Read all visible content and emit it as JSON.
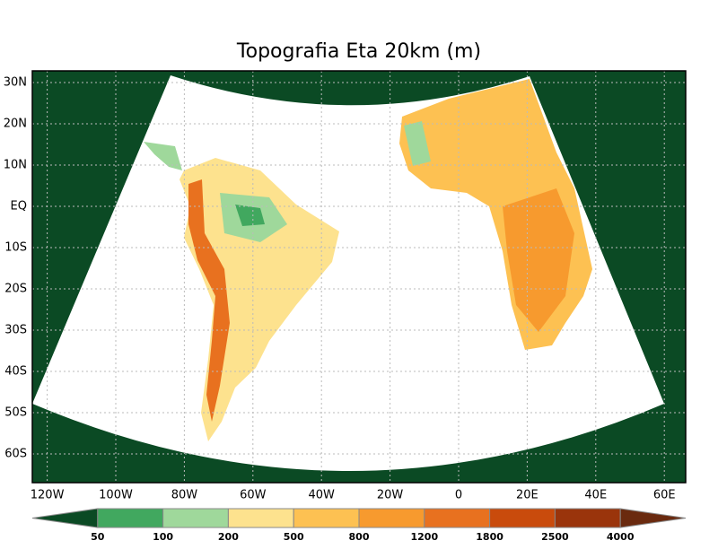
{
  "title": "Topografia Eta 20km (m)",
  "map": {
    "lon_ticks": [
      {
        "value": -120,
        "label": "120W"
      },
      {
        "value": -100,
        "label": "100W"
      },
      {
        "value": -80,
        "label": "80W"
      },
      {
        "value": -60,
        "label": "60W"
      },
      {
        "value": -40,
        "label": "40W"
      },
      {
        "value": -20,
        "label": "20W"
      },
      0,
      {
        "value": 20,
        "label": "20E"
      },
      {
        "value": 40,
        "label": "40E"
      },
      {
        "value": 60,
        "label": "60E"
      }
    ],
    "lat_ticks": [
      {
        "value": 30,
        "label": "30N"
      },
      {
        "value": 20,
        "label": "20N"
      },
      {
        "value": 10,
        "label": "10N"
      },
      {
        "value": 0,
        "label": "EQ"
      },
      {
        "value": -10,
        "label": "10S"
      },
      {
        "value": -20,
        "label": "20S"
      },
      {
        "value": -30,
        "label": "30S"
      },
      {
        "value": -40,
        "label": "40S"
      },
      {
        "value": -50,
        "label": "50S"
      },
      {
        "value": -60,
        "label": "60S"
      }
    ]
  },
  "colorbar": {
    "levels": [
      50,
      100,
      200,
      500,
      800,
      1200,
      1800,
      2500,
      4000
    ],
    "colors": [
      "#0b4a24",
      "#41a85f",
      "#9fd89b",
      "#fde28e",
      "#fdc152",
      "#f79a2e",
      "#e8711f",
      "#c94b0c",
      "#9a340b",
      "#6a2a0f"
    ]
  }
}
